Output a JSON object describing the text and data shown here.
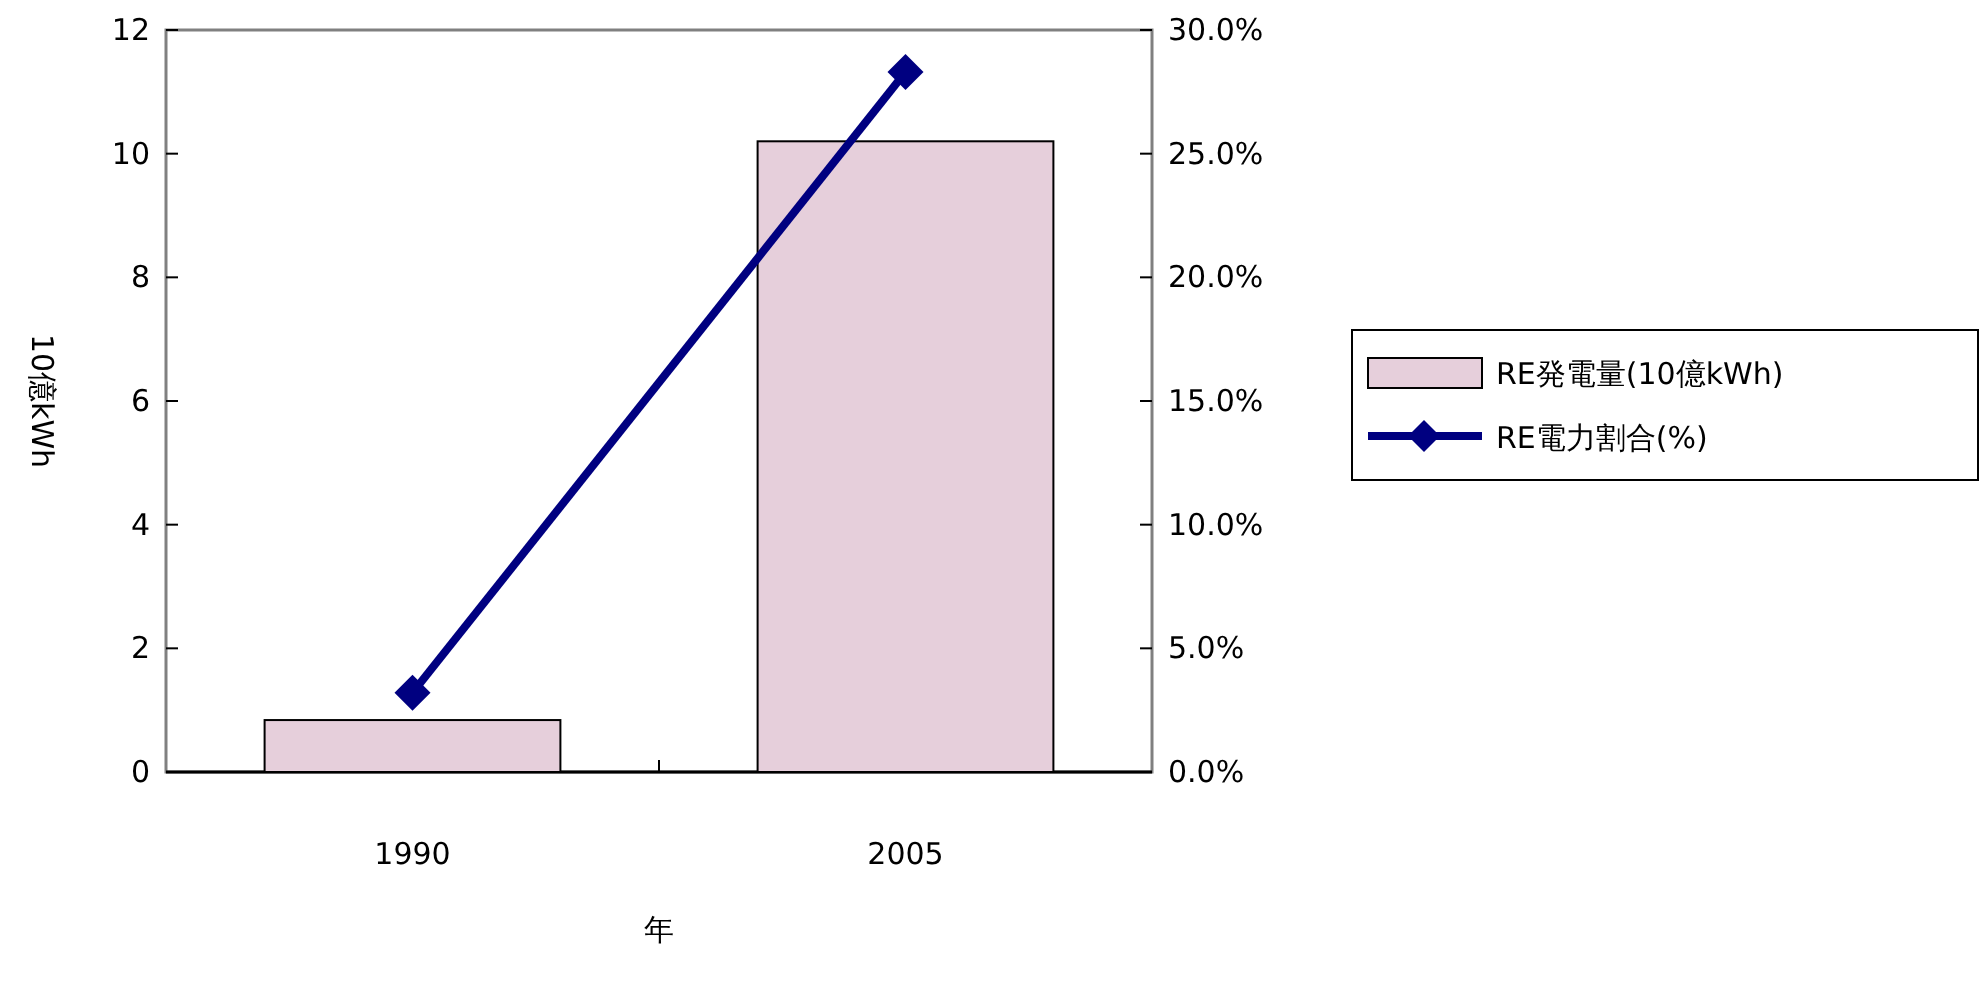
{
  "chart_data": {
    "type": "bar",
    "xlabel": "年",
    "ylabel": "10億kWh",
    "categories": [
      "1990",
      "2005"
    ],
    "series": [
      {
        "name": "RE発電量(10億kWh)",
        "color": "#e6cfdb",
        "values": [
          0.84,
          10.2
        ]
      },
      {
        "name": "RE電力割合(%)",
        "type": "line",
        "axis": "y2",
        "color": "#000080",
        "marker": "diamond",
        "values": [
          3.2,
          28.3
        ]
      }
    ],
    "ylim": [
      0,
      12
    ],
    "yticks": [
      0,
      2,
      4,
      6,
      8,
      10,
      12
    ],
    "y2lim": [
      0,
      30
    ],
    "y2ticks": [
      {
        "value": 0,
        "label": "0.0%"
      },
      {
        "value": 5,
        "label": "5.0%"
      },
      {
        "value": 10,
        "label": "10.0%"
      },
      {
        "value": 15,
        "label": "15.0%"
      },
      {
        "value": 20,
        "label": "20.0%"
      },
      {
        "value": 25,
        "label": "25.0%"
      },
      {
        "value": 30,
        "label": "30.0%"
      }
    ],
    "legend": "right"
  }
}
